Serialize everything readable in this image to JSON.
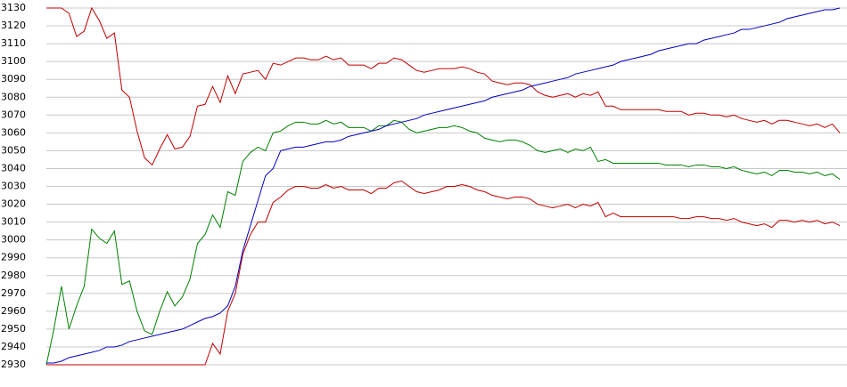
{
  "chart_data": {
    "type": "line",
    "categories": [
      null,
      null,
      null,
      null,
      null,
      null,
      null,
      null,
      null,
      null,
      null,
      null,
      null,
      null,
      null,
      null,
      null,
      null,
      null,
      null,
      null,
      null,
      null,
      null,
      null,
      null,
      null,
      null,
      null,
      null,
      null,
      null,
      null,
      null,
      null,
      null,
      null,
      null,
      null,
      null,
      null,
      null,
      null,
      null,
      null,
      null,
      null,
      null,
      null,
      null,
      null,
      null,
      null,
      null,
      null,
      null,
      null,
      null,
      null,
      null,
      null,
      null,
      null,
      null,
      null,
      null,
      null,
      null,
      null,
      null,
      null,
      null,
      null,
      null,
      null,
      null,
      null,
      null,
      null,
      null,
      null,
      null,
      null,
      null,
      null,
      null,
      null,
      null,
      null,
      null,
      null,
      null,
      null,
      null,
      null,
      null,
      null,
      null,
      null,
      null,
      null,
      null,
      null,
      null,
      null,
      null
    ],
    "ylim": [
      2930,
      3130
    ],
    "yticks": [
      2930,
      2940,
      2950,
      2960,
      2970,
      2980,
      2990,
      3000,
      3010,
      3020,
      3030,
      3040,
      3050,
      3060,
      3070,
      3080,
      3090,
      3100,
      3110,
      3120,
      3130
    ],
    "grid": true,
    "series": [
      {
        "color": "#c00000",
        "values": [
          3130,
          3130,
          3130,
          3127,
          3114,
          3117,
          3130,
          3123,
          3113,
          3116,
          3084,
          3080,
          3061,
          3046,
          3042,
          3051,
          3059,
          3051,
          3052,
          3058,
          3075,
          3076,
          3086,
          3077,
          3092,
          3082,
          3093,
          3094,
          3095,
          3090,
          3099,
          3098,
          3100,
          3102,
          3102,
          3101,
          3101,
          3103,
          3101,
          3102,
          3098,
          3098,
          3098,
          3096,
          3099,
          3099,
          3102,
          3101,
          3098,
          3095,
          3094,
          3095,
          3096,
          3096,
          3096,
          3097,
          3096,
          3094,
          3093,
          3089,
          3088,
          3087,
          3088,
          3088,
          3087,
          3083,
          3081,
          3080,
          3081,
          3082,
          3080,
          3082,
          3081,
          3083,
          3075,
          3075,
          3073,
          3073,
          3073,
          3073,
          3073,
          3073,
          3072,
          3072,
          3072,
          3070,
          3071,
          3071,
          3070,
          3070,
          3069,
          3070,
          3068,
          3067,
          3066,
          3067,
          3065,
          3067,
          3067,
          3066,
          3065,
          3064,
          3065,
          3063,
          3065,
          3060
        ]
      },
      {
        "color": "#008000",
        "values": [
          2930,
          2950,
          2974,
          2950,
          2963,
          2974,
          3006,
          3001,
          2998,
          3005,
          2975,
          2977,
          2960,
          2949,
          2947,
          2960,
          2971,
          2963,
          2968,
          2978,
          2998,
          3003,
          3014,
          3007,
          3027,
          3025,
          3044,
          3049,
          3052,
          3050,
          3060,
          3061,
          3064,
          3066,
          3066,
          3065,
          3065,
          3067,
          3065,
          3066,
          3063,
          3063,
          3063,
          3061,
          3064,
          3064,
          3067,
          3066,
          3062,
          3060,
          3061,
          3062,
          3063,
          3063,
          3064,
          3063,
          3061,
          3060,
          3057,
          3056,
          3055,
          3056,
          3056,
          3055,
          3053,
          3050,
          3049,
          3050,
          3051,
          3049,
          3051,
          3050,
          3052,
          3044,
          3045,
          3043,
          3043,
          3043,
          3043,
          3043,
          3043,
          3043,
          3042,
          3042,
          3042,
          3041,
          3042,
          3042,
          3041,
          3041,
          3040,
          3041,
          3039,
          3038,
          3037,
          3038,
          3036,
          3039,
          3039,
          3038,
          3038,
          3037,
          3038,
          3036,
          3037,
          3034
        ]
      },
      {
        "color": "#c00000",
        "values": [
          2930,
          2930,
          2930,
          2930,
          2930,
          2930,
          2930,
          2930,
          2930,
          2930,
          2930,
          2930,
          2930,
          2930,
          2930,
          2930,
          2930,
          2930,
          2930,
          2930,
          2930,
          2930,
          2942,
          2936,
          2960,
          2970,
          2992,
          3003,
          3010,
          3010,
          3021,
          3024,
          3028,
          3030,
          3030,
          3029,
          3029,
          3031,
          3029,
          3030,
          3028,
          3028,
          3028,
          3026,
          3029,
          3029,
          3032,
          3033,
          3030,
          3027,
          3026,
          3027,
          3028,
          3030,
          3030,
          3031,
          3030,
          3028,
          3027,
          3025,
          3024,
          3023,
          3024,
          3024,
          3023,
          3020,
          3019,
          3018,
          3019,
          3020,
          3018,
          3020,
          3019,
          3021,
          3013,
          3015,
          3013,
          3013,
          3013,
          3013,
          3013,
          3013,
          3013,
          3013,
          3012,
          3012,
          3013,
          3013,
          3012,
          3012,
          3011,
          3012,
          3010,
          3009,
          3008,
          3009,
          3007,
          3011,
          3011,
          3010,
          3011,
          3010,
          3011,
          3009,
          3010,
          3008
        ]
      },
      {
        "color": "#0000c0",
        "values": [
          2931,
          2931,
          2932,
          2934,
          2935,
          2936,
          2937,
          2938,
          2940,
          2940,
          2941,
          2943,
          2944,
          2945,
          2946,
          2947,
          2948,
          2949,
          2950,
          2952,
          2954,
          2956,
          2957,
          2959,
          2963,
          2974,
          2994,
          3008,
          3022,
          3036,
          3040,
          3050,
          3051,
          3052,
          3052,
          3053,
          3054,
          3055,
          3055,
          3056,
          3058,
          3059,
          3060,
          3061,
          3062,
          3064,
          3065,
          3066,
          3067,
          3068,
          3070,
          3071,
          3072,
          3073,
          3074,
          3075,
          3076,
          3077,
          3078,
          3080,
          3081,
          3082,
          3083,
          3084,
          3086,
          3087,
          3088,
          3089,
          3090,
          3091,
          3093,
          3094,
          3095,
          3096,
          3097,
          3098,
          3100,
          3101,
          3102,
          3103,
          3104,
          3106,
          3107,
          3108,
          3109,
          3110,
          3110,
          3112,
          3113,
          3114,
          3115,
          3116,
          3118,
          3118,
          3119,
          3120,
          3121,
          3122,
          3124,
          3125,
          3126,
          3127,
          3128,
          3129,
          3129,
          3130
        ]
      }
    ]
  }
}
